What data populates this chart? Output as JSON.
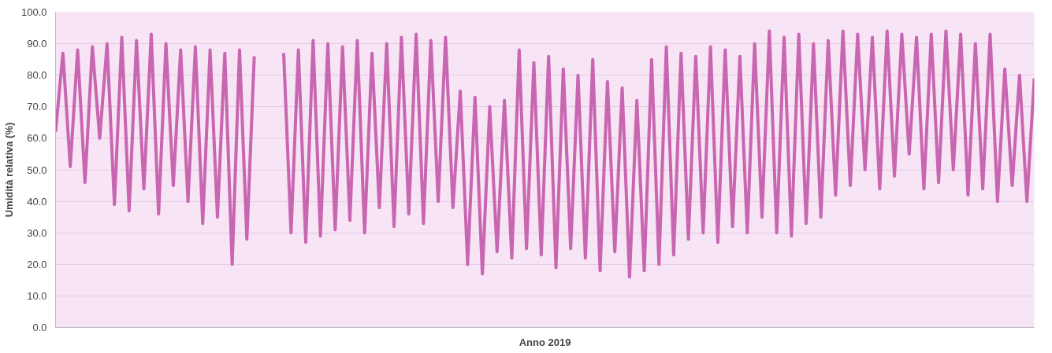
{
  "chart_data": {
    "type": "line",
    "xlabel": "Anno 2019",
    "ylabel": "Umidità relativa (%)",
    "categories": [
      null,
      null,
      null,
      null,
      null,
      null,
      null,
      null,
      null,
      null,
      null,
      null,
      null,
      null,
      null,
      null,
      null,
      null,
      null,
      null,
      null,
      null,
      null,
      null,
      null,
      null,
      null,
      null,
      null,
      null,
      null,
      null,
      null,
      null,
      null,
      null,
      null,
      null,
      null,
      null,
      null,
      null,
      null,
      null,
      null,
      null,
      null,
      null,
      null,
      null,
      null,
      null,
      null,
      null,
      null,
      null,
      null,
      null,
      null,
      null,
      null,
      null,
      null,
      null,
      null,
      null,
      null,
      null,
      null,
      null,
      null,
      null,
      null,
      null,
      null,
      null,
      null,
      null,
      null,
      null,
      null,
      null,
      null,
      null,
      null,
      null,
      null,
      null,
      null,
      null,
      null,
      null,
      null,
      null,
      null,
      null,
      null,
      null,
      null,
      null,
      null,
      null,
      null,
      null,
      null,
      null,
      null,
      null,
      null,
      null,
      null,
      null,
      null,
      null,
      null,
      null,
      null,
      null,
      null,
      null,
      null,
      null,
      null,
      null,
      null,
      null,
      null,
      null,
      null,
      null,
      null,
      null,
      null,
      null
    ],
    "series": [
      {
        "color": "#c866b0",
        "values": [
          62,
          87,
          51,
          88,
          46,
          89,
          60,
          90,
          39,
          92,
          37,
          91,
          44,
          93,
          36,
          90,
          45,
          88,
          40,
          89,
          33,
          88,
          35,
          87,
          20,
          88,
          28,
          86,
          null,
          null,
          null,
          null,
          null,
          null,
          null,
          null,
          null,
          null,
          null,
          null,
          null,
          null,
          null,
          null,
          null,
          null,
          null,
          null,
          null,
          null,
          null,
          null,
          null,
          null,
          null,
          null,
          null,
          null,
          null,
          null,
          null,
          null,
          null,
          null,
          null,
          null,
          null,
          null,
          null,
          null,
          null,
          null,
          null,
          null,
          null,
          null,
          null,
          null,
          null,
          null,
          null,
          null,
          null,
          null,
          null,
          null,
          null,
          null,
          null,
          null,
          null,
          null,
          null,
          null,
          null,
          null,
          null,
          null,
          null,
          null,
          null,
          null,
          null,
          null,
          null,
          null,
          null,
          null,
          null,
          null,
          null,
          null,
          null,
          null,
          null,
          null,
          null,
          null,
          null,
          null,
          null,
          null,
          null,
          null,
          null,
          null,
          null,
          null,
          null,
          null,
          null,
          null,
          null,
          null
        ]
      },
      {
        "color": "#c866b0",
        "values": [
          null,
          null,
          null,
          null,
          null,
          null,
          null,
          null,
          null,
          null,
          null,
          null,
          null,
          null,
          null,
          null,
          null,
          null,
          null,
          null,
          null,
          null,
          null,
          null,
          null,
          null,
          null,
          null,
          null,
          null,
          null,
          87,
          30,
          88,
          27,
          91,
          29,
          90,
          31,
          89,
          34,
          91,
          30,
          87,
          38,
          90,
          32,
          92,
          36,
          93,
          33,
          91,
          40,
          92,
          38,
          75,
          20,
          73,
          17,
          70,
          24,
          72,
          22,
          88,
          25,
          84,
          23,
          86,
          19,
          82,
          25,
          80,
          22,
          85,
          18,
          78,
          24,
          76,
          16,
          72,
          18,
          85,
          20,
          89,
          23,
          87,
          28,
          86,
          30,
          89,
          27,
          88,
          32,
          86,
          30,
          90,
          35,
          94,
          30,
          92,
          29,
          93,
          33,
          90,
          35,
          91,
          42,
          94,
          45,
          93,
          50,
          92,
          44,
          94,
          48,
          93,
          55,
          92,
          44,
          93,
          46,
          94,
          50,
          93,
          42,
          90,
          44,
          93,
          40,
          82,
          45,
          80,
          40,
          79
        ]
      }
    ],
    "ylim": [
      0,
      100
    ],
    "yticks": [
      {
        "value": 0,
        "label": "0.0"
      },
      {
        "value": 10,
        "label": "10.0"
      },
      {
        "value": 20,
        "label": "20.0"
      },
      {
        "value": 30,
        "label": "30.0"
      },
      {
        "value": 40,
        "label": "40.0"
      },
      {
        "value": 50,
        "label": "50.0"
      },
      {
        "value": 60,
        "label": "60.0"
      },
      {
        "value": 70,
        "label": "70.0"
      },
      {
        "value": 80,
        "label": "80.0"
      },
      {
        "value": 90,
        "label": "90.0"
      },
      {
        "value": 100,
        "label": "100.0"
      }
    ],
    "grid": "y",
    "tick_labels": "y",
    "line_style": "solid"
  }
}
